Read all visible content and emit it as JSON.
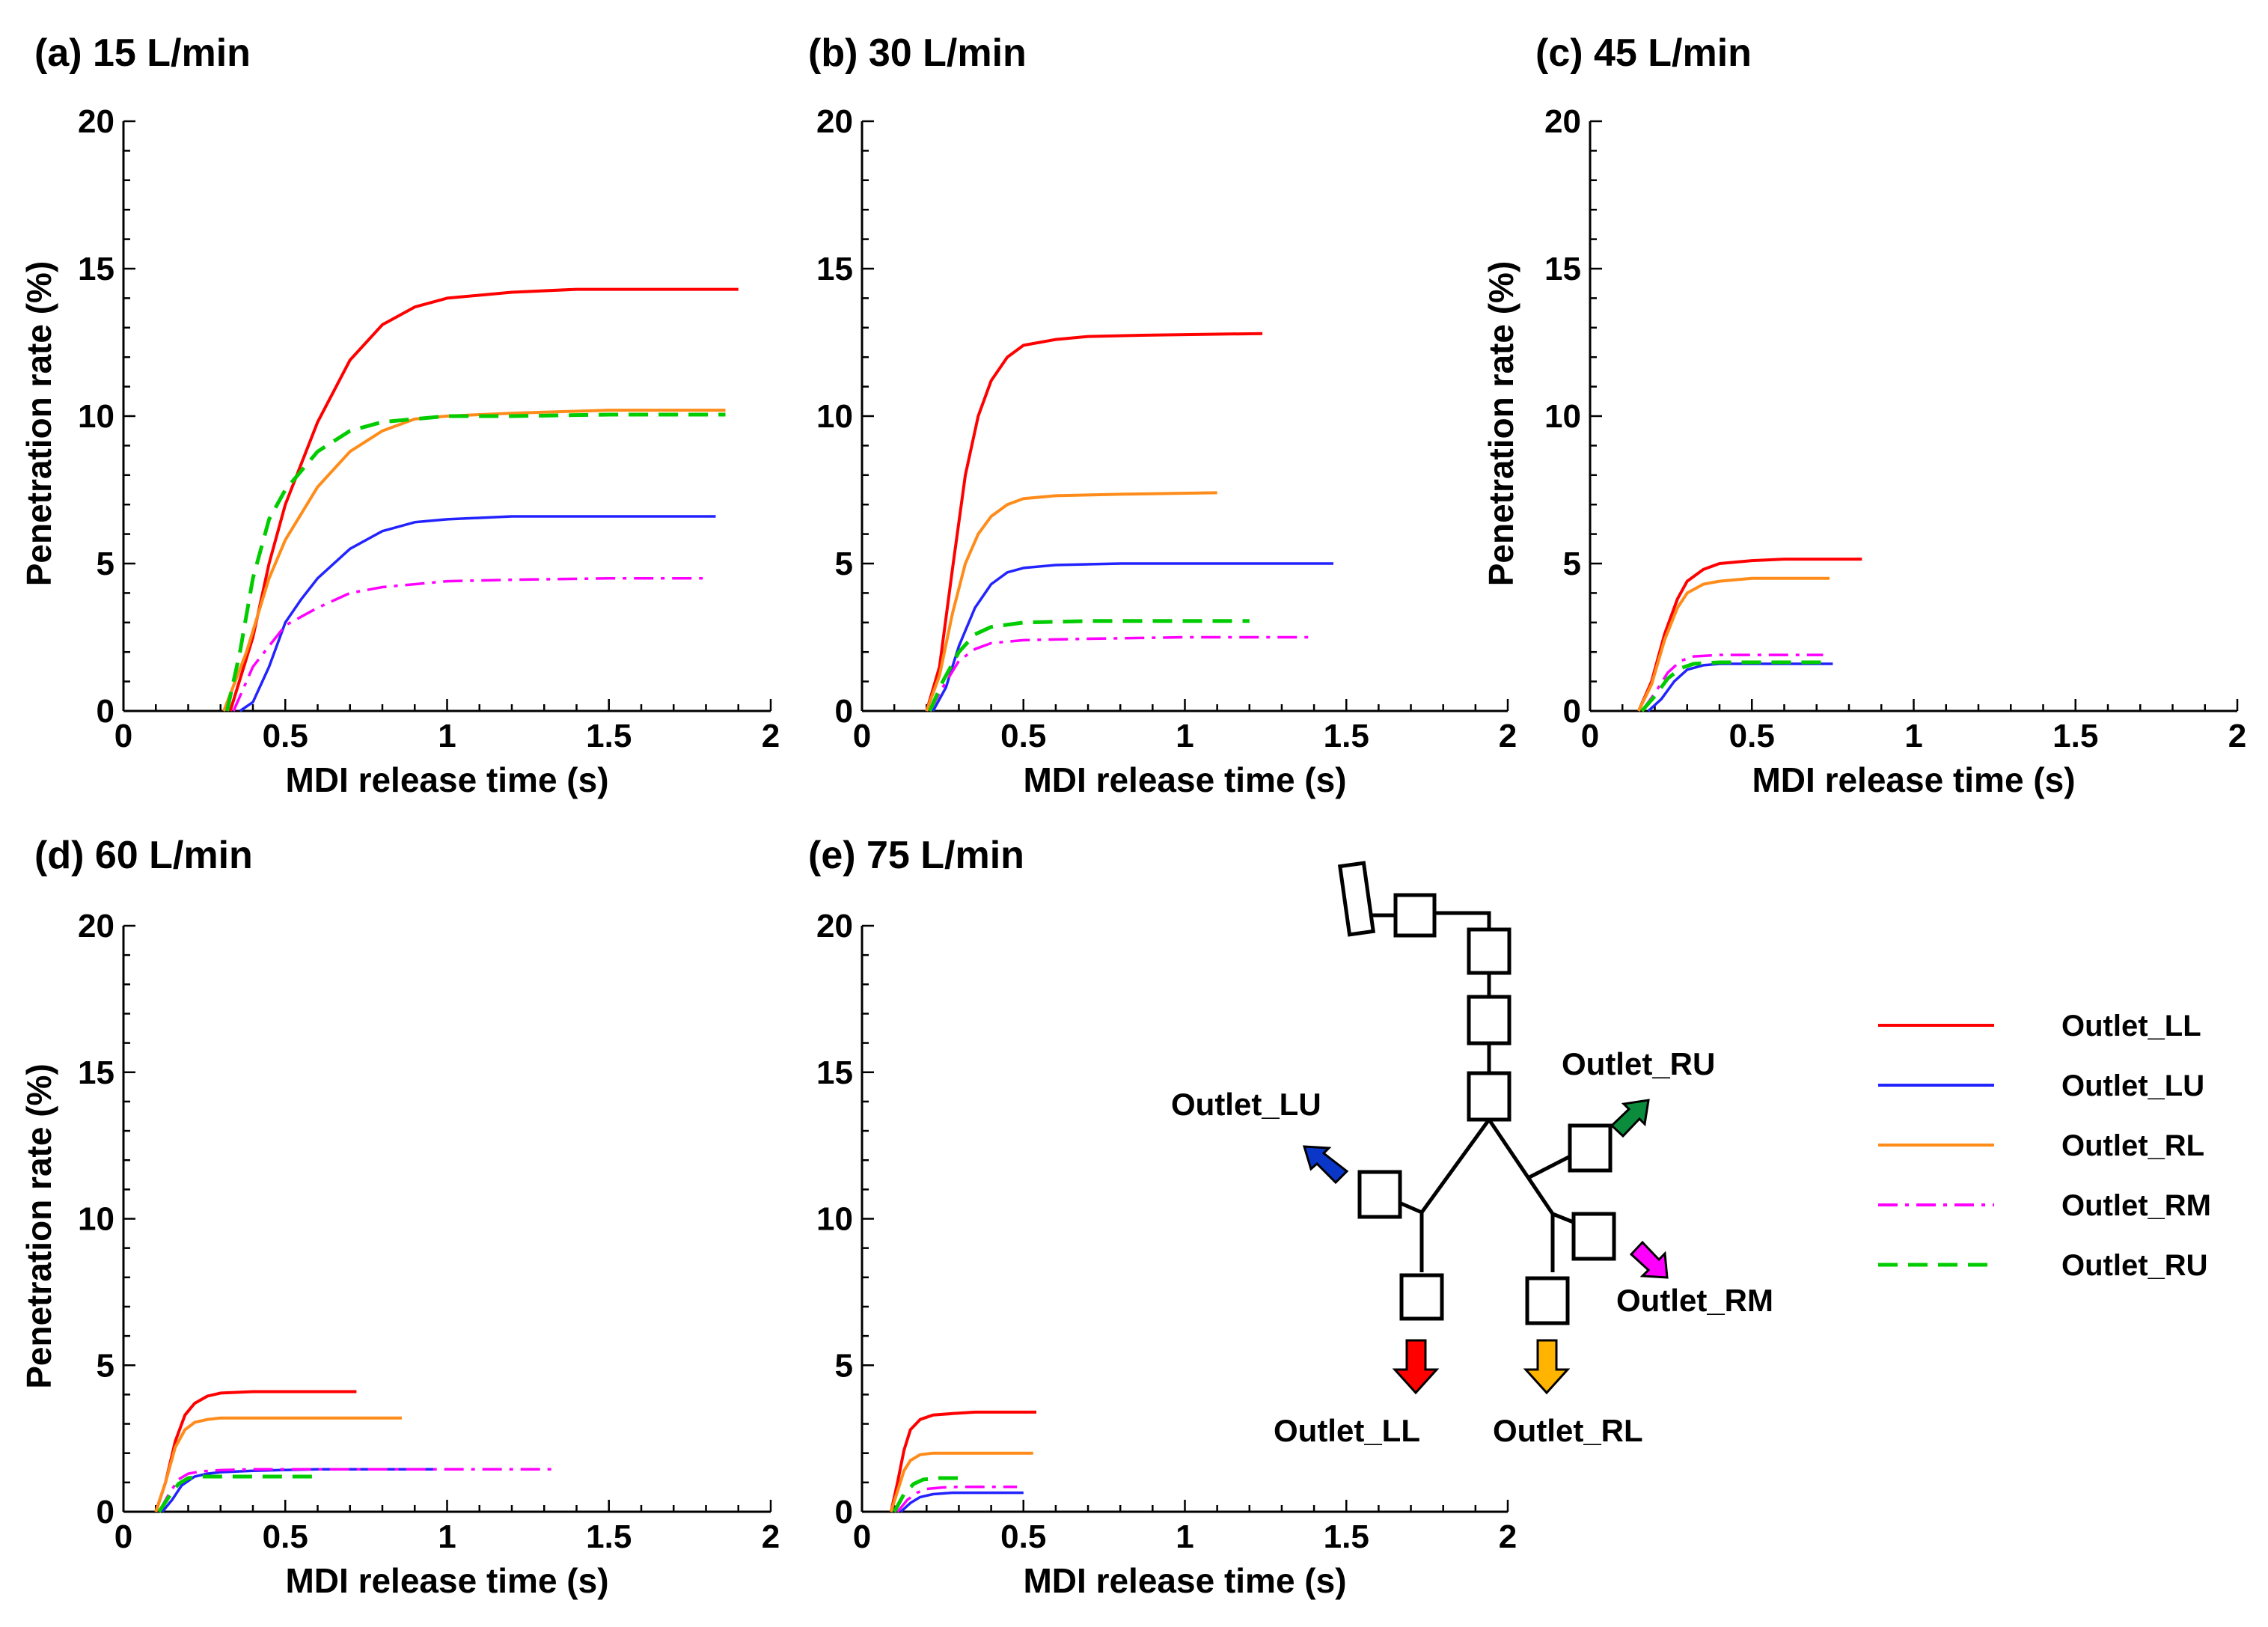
{
  "figure": {
    "series_styles": {
      "Outlet_LL": {
        "color": "#ff0000",
        "dash": ""
      },
      "Outlet_LU": {
        "color": "#2323ff",
        "dash": ""
      },
      "Outlet_RL": {
        "color": "#ff8c1a",
        "dash": ""
      },
      "Outlet_RM": {
        "color": "#ff00ff",
        "dash": "dashdot"
      },
      "Outlet_RU": {
        "color": "#00cc00",
        "dash": "dash"
      }
    },
    "legend": [
      "Outlet_LL",
      "Outlet_LU",
      "Outlet_RL",
      "Outlet_RM",
      "Outlet_RU"
    ],
    "diagram": {
      "labels": {
        "LU": "Outlet_LU",
        "RU": "Outlet_RU",
        "RM": "Outlet_RM",
        "LL": "Outlet_LL",
        "RL": "Outlet_RL"
      },
      "arrow_colors": {
        "LU": "#0a37c8",
        "RU": "#0a8c3c",
        "RM": "#ff00ff",
        "LL": "#ff0000",
        "RL": "#ffb400"
      }
    }
  },
  "chart_data": [
    {
      "type": "line",
      "title": "(a) 15 L/min",
      "xlabel": "MDI release time (s)",
      "ylabel": "Penetration rate (%)",
      "xlim": [
        0,
        2
      ],
      "ylim": [
        0,
        20
      ],
      "xticks": [
        "0",
        "0.5",
        "1",
        "1.5",
        "2"
      ],
      "yticks": [
        "0",
        "5",
        "10",
        "15",
        "20"
      ],
      "series": [
        {
          "name": "Outlet_LL",
          "x": [
            0.33,
            0.4,
            0.45,
            0.5,
            0.6,
            0.7,
            0.8,
            0.9,
            1.0,
            1.2,
            1.4,
            1.6,
            1.9
          ],
          "y": [
            0,
            2.5,
            5.0,
            7.0,
            9.8,
            11.9,
            13.1,
            13.7,
            14.0,
            14.2,
            14.3,
            14.3,
            14.3
          ]
        },
        {
          "name": "Outlet_LU",
          "x": [
            0.36,
            0.4,
            0.45,
            0.5,
            0.55,
            0.6,
            0.7,
            0.8,
            0.9,
            1.0,
            1.2,
            1.5,
            1.83
          ],
          "y": [
            0,
            0.3,
            1.5,
            3.0,
            3.8,
            4.5,
            5.5,
            6.1,
            6.4,
            6.5,
            6.6,
            6.6,
            6.6
          ]
        },
        {
          "name": "Outlet_RL",
          "x": [
            0.31,
            0.38,
            0.45,
            0.5,
            0.6,
            0.7,
            0.8,
            0.9,
            1.0,
            1.2,
            1.5,
            1.86
          ],
          "y": [
            0,
            2.0,
            4.5,
            5.8,
            7.6,
            8.8,
            9.5,
            9.9,
            10.0,
            10.1,
            10.2,
            10.2
          ]
        },
        {
          "name": "Outlet_RM",
          "x": [
            0.34,
            0.4,
            0.45,
            0.5,
            0.6,
            0.7,
            0.8,
            0.9,
            1.0,
            1.2,
            1.5,
            1.8
          ],
          "y": [
            0,
            1.5,
            2.2,
            2.9,
            3.5,
            4.0,
            4.2,
            4.3,
            4.4,
            4.45,
            4.5,
            4.5
          ]
        },
        {
          "name": "Outlet_RU",
          "x": [
            0.32,
            0.36,
            0.4,
            0.45,
            0.5,
            0.6,
            0.7,
            0.8,
            0.9,
            1.0,
            1.2,
            1.5,
            1.86
          ],
          "y": [
            0,
            2.0,
            4.5,
            6.5,
            7.5,
            8.8,
            9.5,
            9.8,
            9.9,
            10.0,
            10.0,
            10.05,
            10.05
          ]
        }
      ]
    },
    {
      "type": "line",
      "title": "(b) 30 L/min",
      "xlabel": "MDI release time (s)",
      "ylabel": "",
      "xlim": [
        0,
        2
      ],
      "ylim": [
        0,
        20
      ],
      "xticks": [
        "0",
        "0.5",
        "1",
        "1.5",
        "2"
      ],
      "yticks": [
        "0",
        "5",
        "10",
        "15",
        "20"
      ],
      "series": [
        {
          "name": "Outlet_LL",
          "x": [
            0.2,
            0.24,
            0.28,
            0.32,
            0.36,
            0.4,
            0.45,
            0.5,
            0.6,
            0.7,
            0.9,
            1.24
          ],
          "y": [
            0,
            1.5,
            4.8,
            8.0,
            10.0,
            11.2,
            12.0,
            12.4,
            12.6,
            12.7,
            12.75,
            12.8
          ]
        },
        {
          "name": "Outlet_LU",
          "x": [
            0.22,
            0.26,
            0.3,
            0.35,
            0.4,
            0.45,
            0.5,
            0.6,
            0.8,
            1.0,
            1.46
          ],
          "y": [
            0,
            0.8,
            2.2,
            3.5,
            4.3,
            4.7,
            4.85,
            4.95,
            5.0,
            5.0,
            5.0
          ]
        },
        {
          "name": "Outlet_RL",
          "x": [
            0.2,
            0.24,
            0.28,
            0.32,
            0.36,
            0.4,
            0.45,
            0.5,
            0.6,
            0.8,
            1.1
          ],
          "y": [
            0,
            1.2,
            3.3,
            5.0,
            6.0,
            6.6,
            7.0,
            7.2,
            7.3,
            7.35,
            7.4
          ]
        },
        {
          "name": "Outlet_RM",
          "x": [
            0.21,
            0.25,
            0.3,
            0.35,
            0.4,
            0.5,
            0.7,
            1.0,
            1.4
          ],
          "y": [
            0,
            0.8,
            1.7,
            2.1,
            2.3,
            2.4,
            2.45,
            2.5,
            2.5
          ]
        },
        {
          "name": "Outlet_RU",
          "x": [
            0.21,
            0.25,
            0.3,
            0.35,
            0.4,
            0.5,
            0.7,
            1.0,
            1.2
          ],
          "y": [
            0,
            1.0,
            2.0,
            2.6,
            2.85,
            3.0,
            3.05,
            3.05,
            3.05
          ]
        }
      ]
    },
    {
      "type": "line",
      "title": "(c) 45 L/min",
      "xlabel": "MDI release time (s)",
      "ylabel": "Penetration rate (%)",
      "xlim": [
        0,
        2
      ],
      "ylim": [
        0,
        20
      ],
      "xticks": [
        "0",
        "0.5",
        "1",
        "1.5",
        "2"
      ],
      "yticks": [
        "0",
        "5",
        "10",
        "15",
        "20"
      ],
      "series": [
        {
          "name": "Outlet_LL",
          "x": [
            0.15,
            0.19,
            0.23,
            0.27,
            0.3,
            0.35,
            0.4,
            0.5,
            0.6,
            0.84
          ],
          "y": [
            0,
            1.0,
            2.6,
            3.8,
            4.4,
            4.8,
            5.0,
            5.1,
            5.15,
            5.15
          ]
        },
        {
          "name": "Outlet_LU",
          "x": [
            0.18,
            0.22,
            0.26,
            0.3,
            0.35,
            0.4,
            0.5,
            0.75
          ],
          "y": [
            0,
            0.4,
            1.0,
            1.4,
            1.55,
            1.6,
            1.6,
            1.6
          ]
        },
        {
          "name": "Outlet_RL",
          "x": [
            0.15,
            0.19,
            0.23,
            0.27,
            0.3,
            0.35,
            0.4,
            0.5,
            0.74
          ],
          "y": [
            0,
            0.9,
            2.4,
            3.5,
            4.0,
            4.3,
            4.4,
            4.5,
            4.5
          ]
        },
        {
          "name": "Outlet_RM",
          "x": [
            0.16,
            0.2,
            0.24,
            0.28,
            0.32,
            0.4,
            0.5,
            0.72
          ],
          "y": [
            0,
            0.6,
            1.3,
            1.7,
            1.85,
            1.9,
            1.9,
            1.9
          ]
        },
        {
          "name": "Outlet_RU",
          "x": [
            0.16,
            0.2,
            0.24,
            0.28,
            0.32,
            0.4,
            0.5,
            0.72
          ],
          "y": [
            0,
            0.5,
            1.1,
            1.45,
            1.6,
            1.65,
            1.65,
            1.65
          ]
        }
      ]
    },
    {
      "type": "line",
      "title": "(d) 60 L/min",
      "xlabel": "MDI release time (s)",
      "ylabel": "Penetration rate (%)",
      "xlim": [
        0,
        2
      ],
      "ylim": [
        0,
        20
      ],
      "xticks": [
        "0",
        "0.5",
        "1",
        "1.5",
        "2"
      ],
      "yticks": [
        "0",
        "5",
        "10",
        "15",
        "20"
      ],
      "series": [
        {
          "name": "Outlet_LL",
          "x": [
            0.1,
            0.13,
            0.16,
            0.19,
            0.22,
            0.26,
            0.3,
            0.4,
            0.72
          ],
          "y": [
            0,
            1.0,
            2.4,
            3.3,
            3.7,
            3.95,
            4.05,
            4.1,
            4.1
          ]
        },
        {
          "name": "Outlet_LU",
          "x": [
            0.12,
            0.15,
            0.18,
            0.22,
            0.26,
            0.3,
            0.4,
            0.6,
            0.96
          ],
          "y": [
            0,
            0.4,
            0.9,
            1.2,
            1.3,
            1.35,
            1.4,
            1.45,
            1.45
          ]
        },
        {
          "name": "Outlet_RL",
          "x": [
            0.1,
            0.13,
            0.16,
            0.19,
            0.22,
            0.26,
            0.3,
            0.4,
            0.86
          ],
          "y": [
            0,
            1.0,
            2.2,
            2.8,
            3.05,
            3.15,
            3.2,
            3.2,
            3.2
          ]
        },
        {
          "name": "Outlet_RM",
          "x": [
            0.11,
            0.14,
            0.17,
            0.2,
            0.24,
            0.3,
            0.4,
            0.6,
            1.33
          ],
          "y": [
            0,
            0.6,
            1.1,
            1.3,
            1.38,
            1.42,
            1.45,
            1.45,
            1.45
          ]
        },
        {
          "name": "Outlet_RU",
          "x": [
            0.11,
            0.14,
            0.17,
            0.2,
            0.24,
            0.3,
            0.6
          ],
          "y": [
            0,
            0.5,
            0.95,
            1.15,
            1.2,
            1.2,
            1.2
          ]
        }
      ]
    },
    {
      "type": "line",
      "title": "(e) 75 L/min",
      "xlabel": "MDI release time (s)",
      "ylabel": "",
      "xlim": [
        0,
        2
      ],
      "ylim": [
        0,
        20
      ],
      "xticks": [
        "0",
        "0.5",
        "1",
        "1.5",
        "2"
      ],
      "yticks": [
        "0",
        "5",
        "10",
        "15",
        "20"
      ],
      "series": [
        {
          "name": "Outlet_LL",
          "x": [
            0.09,
            0.11,
            0.13,
            0.15,
            0.18,
            0.22,
            0.28,
            0.35,
            0.54
          ],
          "y": [
            0,
            1.0,
            2.1,
            2.8,
            3.15,
            3.3,
            3.35,
            3.4,
            3.4
          ]
        },
        {
          "name": "Outlet_LU",
          "x": [
            0.12,
            0.15,
            0.18,
            0.22,
            0.28,
            0.5
          ],
          "y": [
            0,
            0.3,
            0.5,
            0.6,
            0.65,
            0.65
          ]
        },
        {
          "name": "Outlet_RL",
          "x": [
            0.09,
            0.11,
            0.13,
            0.15,
            0.18,
            0.22,
            0.28,
            0.53
          ],
          "y": [
            0,
            0.7,
            1.4,
            1.75,
            1.95,
            2.0,
            2.0,
            2.0
          ]
        },
        {
          "name": "Outlet_RM",
          "x": [
            0.11,
            0.14,
            0.17,
            0.2,
            0.25,
            0.3,
            0.48
          ],
          "y": [
            0,
            0.4,
            0.65,
            0.78,
            0.83,
            0.85,
            0.85
          ]
        },
        {
          "name": "Outlet_RU",
          "x": [
            0.1,
            0.13,
            0.16,
            0.19,
            0.24,
            0.3
          ],
          "y": [
            0,
            0.6,
            0.95,
            1.1,
            1.15,
            1.15
          ]
        }
      ]
    }
  ]
}
